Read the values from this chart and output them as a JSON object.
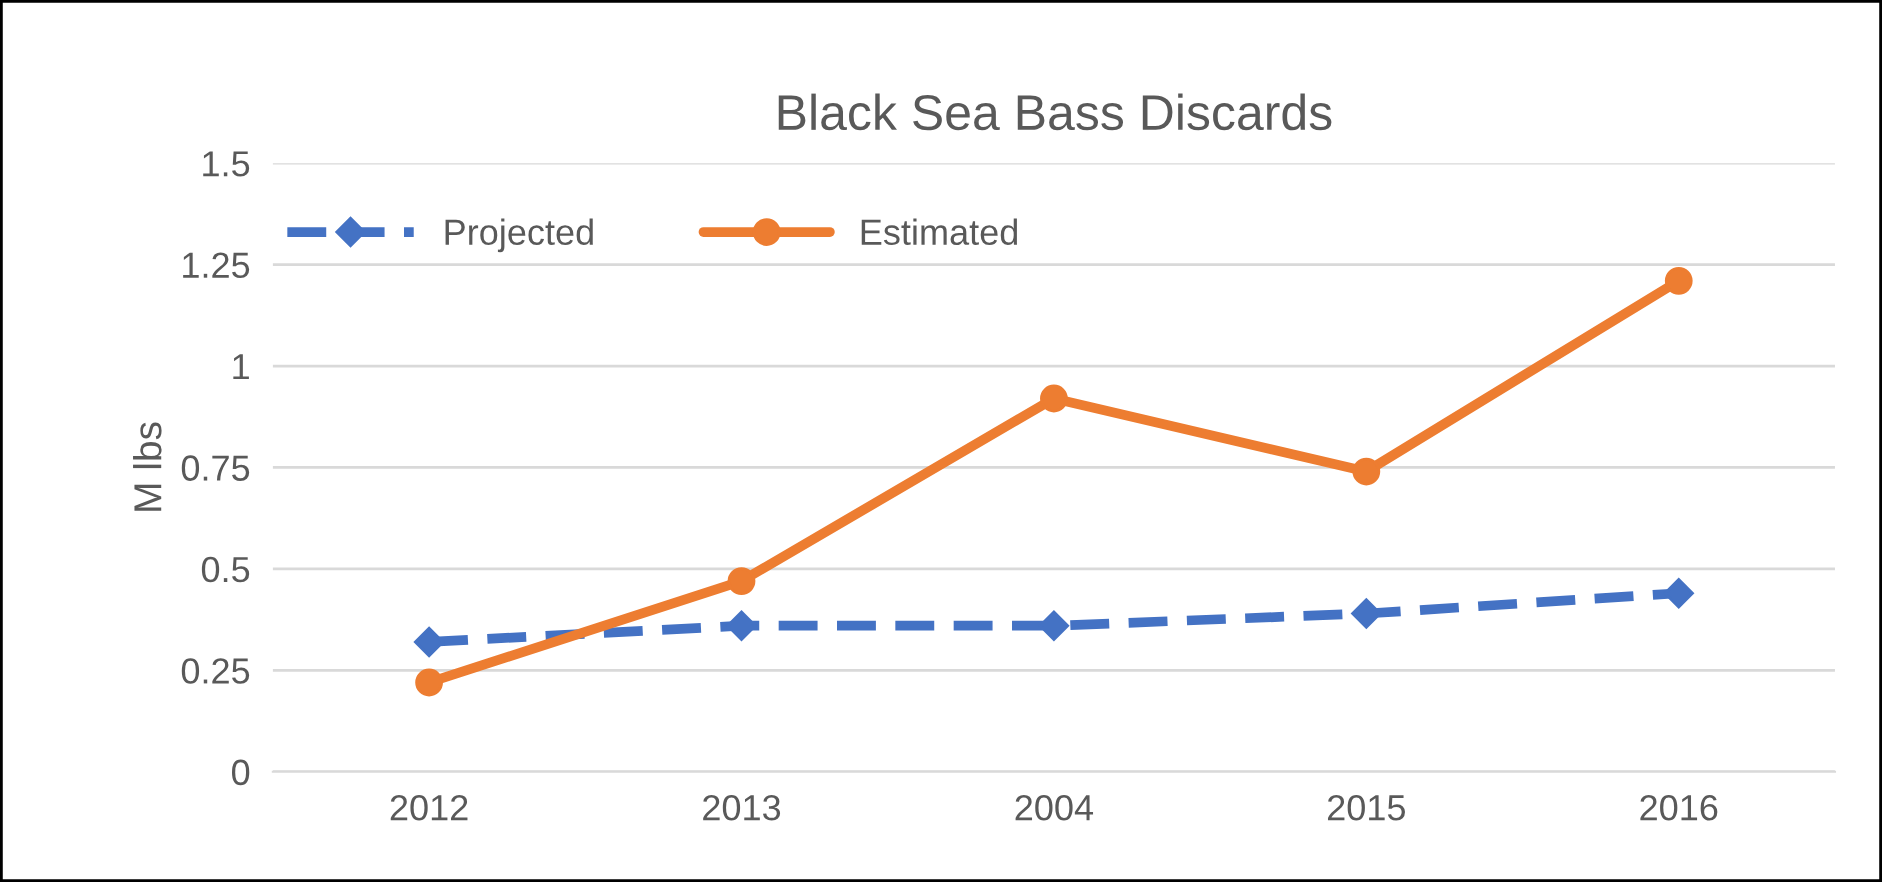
{
  "chart_data": {
    "type": "line",
    "title": "Black Sea Bass Discards",
    "ylabel": "M lbs",
    "categories": [
      "2012",
      "2013",
      "2004",
      "2015",
      "2016"
    ],
    "series": [
      {
        "name": "Projected",
        "color": "#4472c4",
        "marker": "diamond",
        "line_style": "dashed",
        "values": [
          0.32,
          0.36,
          0.36,
          0.39,
          0.44
        ]
      },
      {
        "name": "Estimated",
        "color": "#ed7d31",
        "marker": "circle",
        "line_style": "solid",
        "values": [
          0.22,
          0.47,
          0.92,
          0.74,
          1.21
        ]
      }
    ],
    "ylim": [
      0,
      1.5
    ],
    "yticks": [
      0,
      0.25,
      0.5,
      0.75,
      1,
      1.25,
      1.5
    ],
    "grid": "y",
    "legend": "top left"
  }
}
